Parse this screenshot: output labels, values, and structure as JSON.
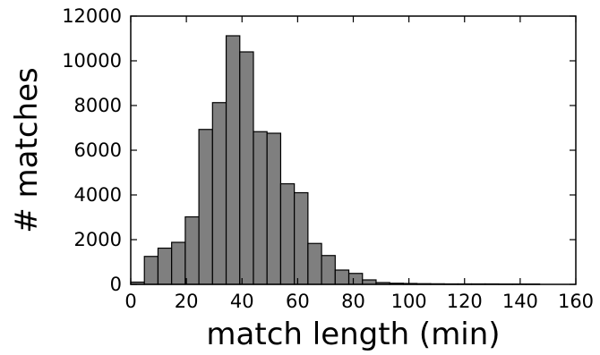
{
  "chart_data": {
    "type": "bar",
    "xlabel": "match length (min)",
    "ylabel": "# matches",
    "xlim": [
      0,
      160
    ],
    "ylim": [
      0,
      12000
    ],
    "xticks": [
      "0",
      "20",
      "40",
      "60",
      "80",
      "100",
      "120",
      "140",
      "160"
    ],
    "yticks": [
      "0",
      "2000",
      "4000",
      "6000",
      "8000",
      "10000",
      "12000"
    ],
    "grid": false,
    "bar_color": "#7f7f7f",
    "bin_width": 4.9,
    "bins": [
      {
        "x0": 0.0,
        "value": 100
      },
      {
        "x0": 4.9,
        "value": 1250
      },
      {
        "x0": 9.8,
        "value": 1620
      },
      {
        "x0": 14.7,
        "value": 1880
      },
      {
        "x0": 19.6,
        "value": 3020
      },
      {
        "x0": 24.5,
        "value": 6930
      },
      {
        "x0": 29.4,
        "value": 8130
      },
      {
        "x0": 34.3,
        "value": 11120
      },
      {
        "x0": 39.2,
        "value": 10400
      },
      {
        "x0": 44.1,
        "value": 6830
      },
      {
        "x0": 49.0,
        "value": 6760
      },
      {
        "x0": 53.9,
        "value": 4500
      },
      {
        "x0": 58.8,
        "value": 4100
      },
      {
        "x0": 63.7,
        "value": 1830
      },
      {
        "x0": 68.6,
        "value": 1290
      },
      {
        "x0": 73.5,
        "value": 640
      },
      {
        "x0": 78.4,
        "value": 490
      },
      {
        "x0": 83.3,
        "value": 200
      },
      {
        "x0": 88.2,
        "value": 80
      },
      {
        "x0": 93.1,
        "value": 50
      },
      {
        "x0": 98.0,
        "value": 40
      },
      {
        "x0": 102.9,
        "value": 30
      },
      {
        "x0": 107.8,
        "value": 25
      },
      {
        "x0": 112.7,
        "value": 20
      },
      {
        "x0": 117.6,
        "value": 20
      },
      {
        "x0": 122.5,
        "value": 20
      },
      {
        "x0": 127.4,
        "value": 20
      },
      {
        "x0": 132.3,
        "value": 15
      },
      {
        "x0": 137.2,
        "value": 15
      },
      {
        "x0": 142.1,
        "value": 15
      }
    ]
  }
}
